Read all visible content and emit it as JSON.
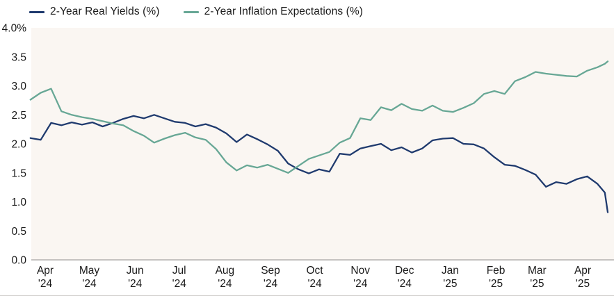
{
  "legend": {
    "items": [
      {
        "label": "2-Year Real Yields (%)",
        "color": "#1f3a6e"
      },
      {
        "label": "2-Year Inflation Expectations (%)",
        "color": "#67a795"
      }
    ]
  },
  "chart_data": {
    "type": "line",
    "title": "",
    "xlabel": "",
    "ylabel": "%",
    "ylim": [
      0.0,
      4.0
    ],
    "grid": false,
    "legend_position": "top-left",
    "plot_bg": "#faf6f2",
    "axis_line_color": "#b3b1af",
    "y_ticks": [
      {
        "label": "4.0%",
        "value": 4.0
      },
      {
        "label": "3.5",
        "value": 3.5
      },
      {
        "label": "3.0",
        "value": 3.0
      },
      {
        "label": "2.5",
        "value": 2.5
      },
      {
        "label": "2.0",
        "value": 2.0
      },
      {
        "label": "1.5",
        "value": 1.5
      },
      {
        "label": "1.0",
        "value": 1.0
      },
      {
        "label": "0.5",
        "value": 0.5
      },
      {
        "label": "0.0",
        "value": 0.0
      }
    ],
    "x_ticks": [
      {
        "month": "Apr",
        "year": "'24",
        "date": "2024-04-01"
      },
      {
        "month": "May",
        "year": "'24",
        "date": "2024-05-01"
      },
      {
        "month": "Jun",
        "year": "'24",
        "date": "2024-06-01"
      },
      {
        "month": "Jul",
        "year": "'24",
        "date": "2024-07-01"
      },
      {
        "month": "Aug",
        "year": "'24",
        "date": "2024-08-01"
      },
      {
        "month": "Sep",
        "year": "'24",
        "date": "2024-09-01"
      },
      {
        "month": "Oct",
        "year": "'24",
        "date": "2024-10-01"
      },
      {
        "month": "Nov",
        "year": "'24",
        "date": "2024-11-01"
      },
      {
        "month": "Dec",
        "year": "'24",
        "date": "2024-12-01"
      },
      {
        "month": "Jan",
        "year": "'25",
        "date": "2025-01-01"
      },
      {
        "month": "Feb",
        "year": "'25",
        "date": "2025-02-01"
      },
      {
        "month": "Mar",
        "year": "'25",
        "date": "2025-03-01"
      },
      {
        "month": "Apr",
        "year": "'25",
        "date": "2025-04-01"
      }
    ],
    "x": [
      "2024-03-22",
      "2024-03-29",
      "2024-04-05",
      "2024-04-12",
      "2024-04-19",
      "2024-04-26",
      "2024-05-03",
      "2024-05-10",
      "2024-05-17",
      "2024-05-24",
      "2024-05-31",
      "2024-06-07",
      "2024-06-14",
      "2024-06-21",
      "2024-06-28",
      "2024-07-05",
      "2024-07-12",
      "2024-07-19",
      "2024-07-26",
      "2024-08-02",
      "2024-08-09",
      "2024-08-16",
      "2024-08-23",
      "2024-08-30",
      "2024-09-06",
      "2024-09-13",
      "2024-09-20",
      "2024-09-27",
      "2024-10-04",
      "2024-10-11",
      "2024-10-18",
      "2024-10-25",
      "2024-11-01",
      "2024-11-08",
      "2024-11-15",
      "2024-11-22",
      "2024-11-29",
      "2024-12-06",
      "2024-12-13",
      "2024-12-20",
      "2024-12-27",
      "2025-01-03",
      "2025-01-10",
      "2025-01-17",
      "2025-01-24",
      "2025-01-31",
      "2025-02-07",
      "2025-02-14",
      "2025-02-21",
      "2025-02-28",
      "2025-03-07",
      "2025-03-14",
      "2025-03-21",
      "2025-03-28",
      "2025-04-04",
      "2025-04-11",
      "2025-04-16",
      "2025-04-18"
    ],
    "series": [
      {
        "name": "2-Year Real Yields (%)",
        "color": "#1f3a6e",
        "values": [
          2.1,
          2.07,
          2.36,
          2.32,
          2.37,
          2.33,
          2.37,
          2.3,
          2.36,
          2.43,
          2.48,
          2.44,
          2.5,
          2.44,
          2.38,
          2.36,
          2.3,
          2.34,
          2.28,
          2.18,
          2.03,
          2.16,
          2.08,
          1.99,
          1.88,
          1.66,
          1.56,
          1.49,
          1.56,
          1.52,
          1.83,
          1.81,
          1.92,
          1.96,
          2.0,
          1.89,
          1.94,
          1.85,
          1.92,
          2.06,
          2.09,
          2.1,
          2.0,
          1.99,
          1.92,
          1.77,
          1.64,
          1.62,
          1.55,
          1.47,
          1.26,
          1.34,
          1.31,
          1.39,
          1.44,
          1.31,
          1.16,
          0.82
        ]
      },
      {
        "name": "2-Year Inflation Expectations (%)",
        "color": "#67a795",
        "values": [
          2.76,
          2.88,
          2.95,
          2.56,
          2.5,
          2.46,
          2.43,
          2.39,
          2.35,
          2.32,
          2.22,
          2.14,
          2.02,
          2.09,
          2.15,
          2.19,
          2.11,
          2.07,
          1.91,
          1.68,
          1.54,
          1.63,
          1.59,
          1.64,
          1.57,
          1.5,
          1.62,
          1.74,
          1.8,
          1.86,
          2.02,
          2.1,
          2.44,
          2.41,
          2.63,
          2.58,
          2.69,
          2.6,
          2.57,
          2.66,
          2.57,
          2.55,
          2.62,
          2.7,
          2.86,
          2.91,
          2.86,
          3.08,
          3.15,
          3.24,
          3.21,
          3.19,
          3.17,
          3.16,
          3.26,
          3.32,
          3.38,
          3.42
        ]
      }
    ]
  }
}
